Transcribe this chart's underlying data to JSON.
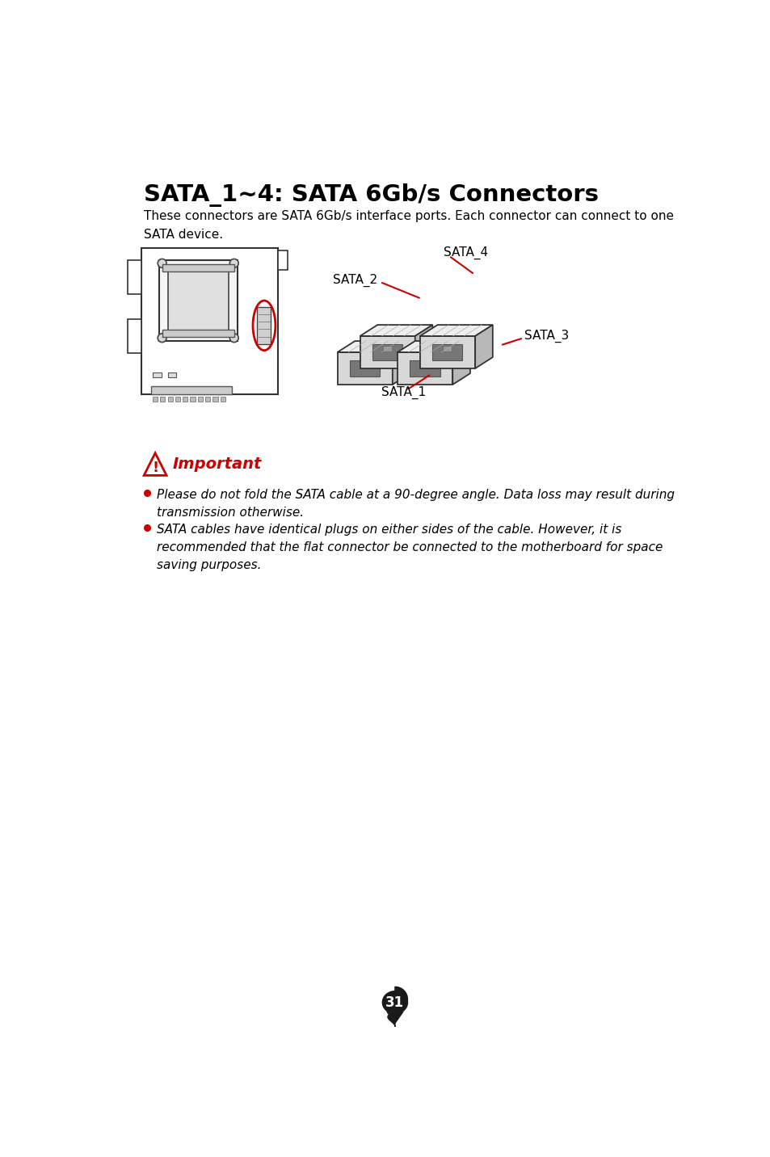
{
  "title": "SATA_1~4: SATA 6Gb/s Connectors",
  "description": "These connectors are SATA 6Gb/s interface ports. Each connector can connect to one\nSATA device.",
  "important_label": "Important",
  "bullet1": "Please do not fold the SATA cable at a 90-degree angle. Data loss may result during\ntransmission otherwise.",
  "bullet2": "SATA cables have identical plugs on either sides of the cable. However, it is\nrecommended that the flat connector be connected to the motherboard for space\nsaving purposes.",
  "page_number": "31",
  "bg_color": "#ffffff",
  "text_color": "#000000",
  "red_color": "#cc0000"
}
